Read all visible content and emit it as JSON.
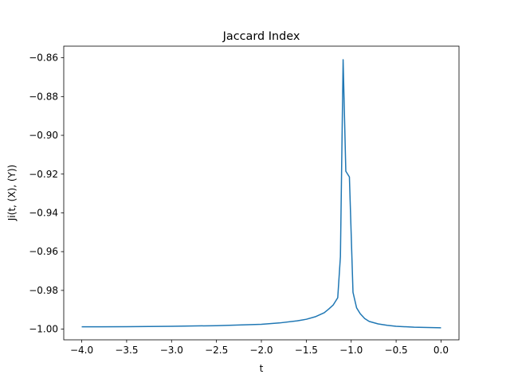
{
  "chart_data": {
    "type": "line",
    "title": "Jaccard Index",
    "xlabel": "t",
    "ylabel": "Ji(t, (X), (Y))",
    "xlim": [
      -4.2,
      0.2
    ],
    "ylim": [
      -1.0055,
      -0.854
    ],
    "xticks": [
      -4.0,
      -3.5,
      -3.0,
      -2.5,
      -2.0,
      -1.5,
      -1.0,
      -0.5,
      0.0
    ],
    "xtick_labels": [
      "−4.0",
      "−3.5",
      "−3.0",
      "−2.5",
      "−2.0",
      "−1.5",
      "−1.0",
      "−0.5",
      "0.0"
    ],
    "yticks": [
      -1.0,
      -0.98,
      -0.96,
      -0.94,
      -0.92,
      -0.9,
      -0.88,
      -0.86
    ],
    "ytick_labels": [
      "−1.00",
      "−0.98",
      "−0.96",
      "−0.94",
      "−0.92",
      "−0.90",
      "−0.88",
      "−0.86"
    ],
    "grid": false,
    "colors": {
      "line": "#1f77b4",
      "axes": "#000000"
    },
    "series": [
      {
        "x": [
          -4.0,
          -3.5,
          -3.0,
          -2.5,
          -2.0,
          -1.8,
          -1.6,
          -1.5,
          -1.4,
          -1.3,
          -1.25,
          -1.2,
          -1.15,
          -1.12,
          -1.09,
          -1.06,
          -1.02,
          -0.98,
          -0.94,
          -0.9,
          -0.85,
          -0.8,
          -0.7,
          -0.6,
          -0.5,
          -0.3,
          0.0
        ],
        "y": [
          -0.9988,
          -0.9987,
          -0.9985,
          -0.9982,
          -0.9975,
          -0.9968,
          -0.9957,
          -0.9949,
          -0.9936,
          -0.9915,
          -0.9896,
          -0.9875,
          -0.9838,
          -0.9625,
          -0.861,
          -0.9185,
          -0.9215,
          -0.981,
          -0.989,
          -0.992,
          -0.9945,
          -0.996,
          -0.9973,
          -0.998,
          -0.9985,
          -0.999,
          -0.9993
        ]
      }
    ]
  }
}
